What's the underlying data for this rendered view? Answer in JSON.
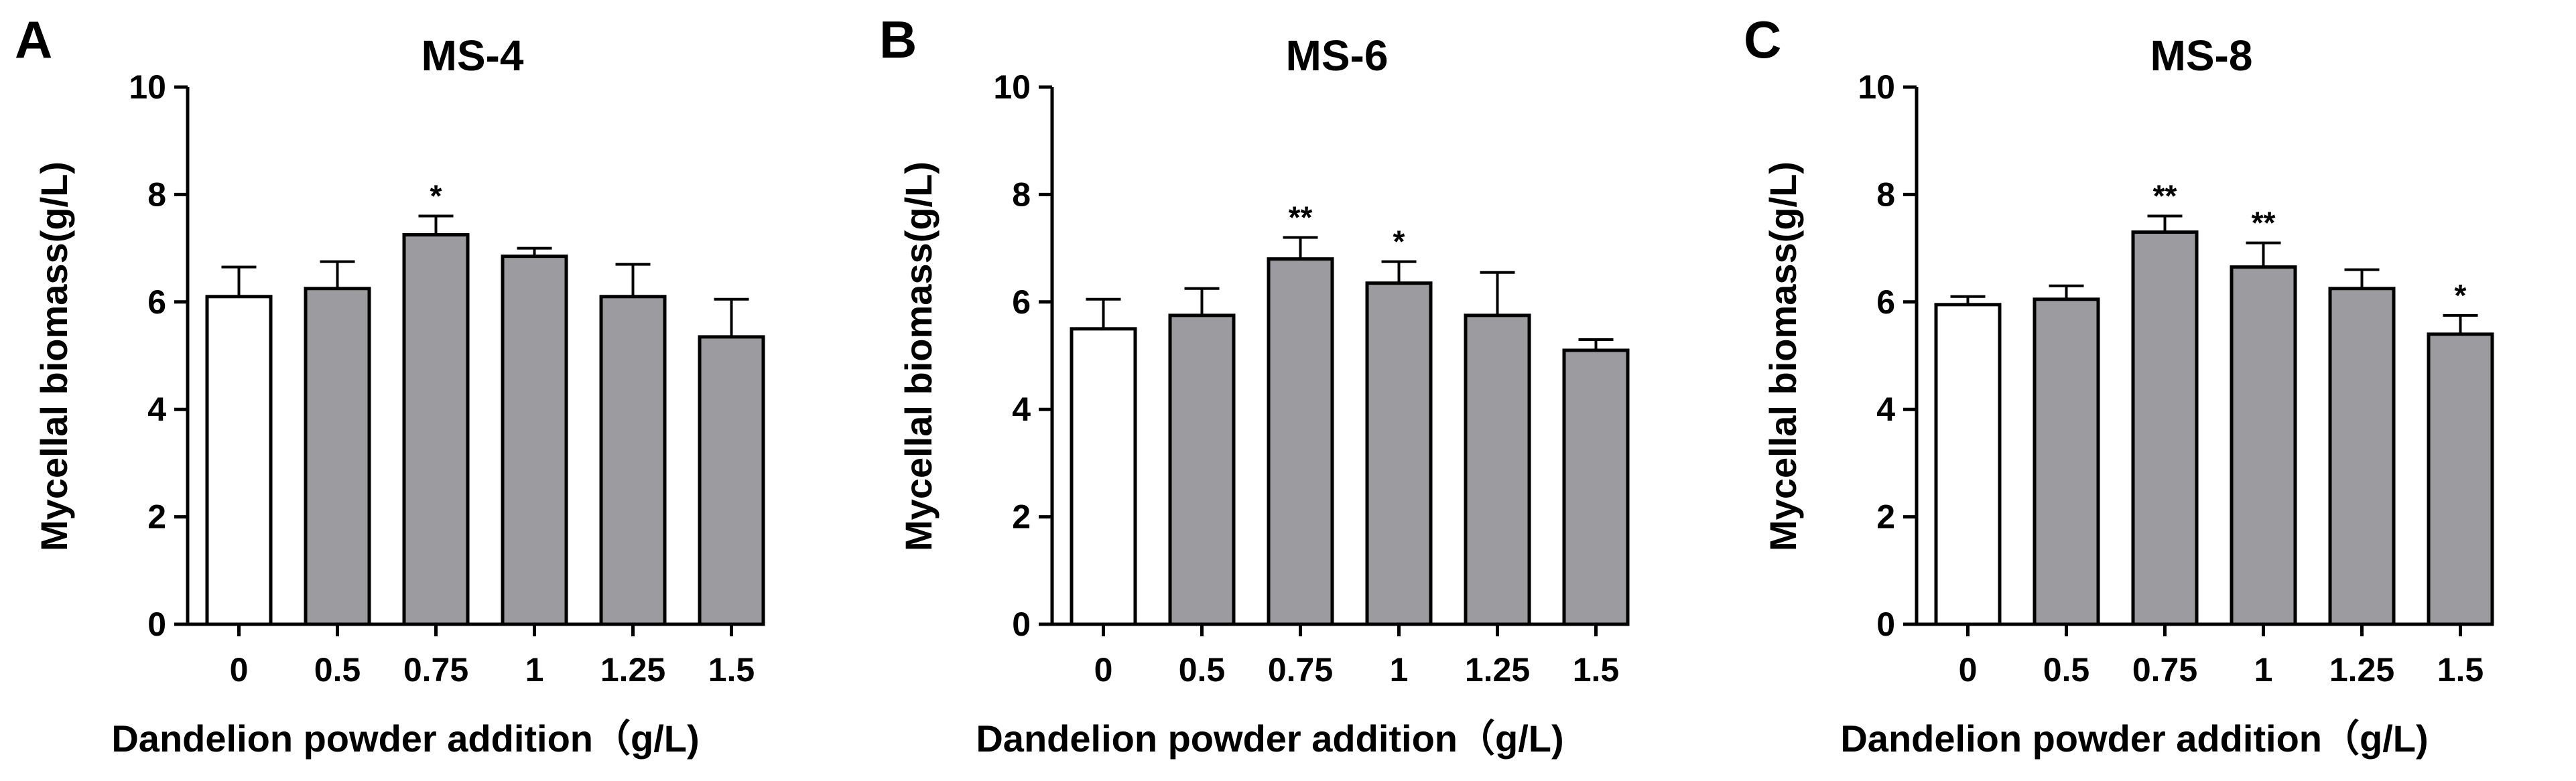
{
  "chart_data": [
    {
      "type": "bar",
      "panel_label": "A",
      "title": "MS-4",
      "xlabel": "Dandelion powder addition（g/L)",
      "ylabel": "Mycellal biomass(g/L)",
      "categories": [
        "0",
        "0.5",
        "0.75",
        "1",
        "1.25",
        "1.5"
      ],
      "values": [
        6.1,
        6.25,
        7.25,
        6.85,
        6.1,
        5.35
      ],
      "errors": [
        0.55,
        0.5,
        0.35,
        0.15,
        0.6,
        0.7
      ],
      "significance": [
        "",
        "",
        "*",
        "",
        "",
        ""
      ],
      "ylim": [
        0,
        10
      ],
      "yticks": [
        "0",
        "2",
        "4",
        "6",
        "8",
        "10"
      ],
      "colors": {
        "control": "#ffffff",
        "treatment": "#9c9ca0",
        "stroke": "#000000"
      }
    },
    {
      "type": "bar",
      "panel_label": "B",
      "title": "MS-6",
      "xlabel": "Dandelion powder addition（g/L)",
      "ylabel": "Mycellal biomass(g/L)",
      "categories": [
        "0",
        "0.5",
        "0.75",
        "1",
        "1.25",
        "1.5"
      ],
      "values": [
        5.5,
        5.75,
        6.8,
        6.35,
        5.75,
        5.1
      ],
      "errors": [
        0.55,
        0.5,
        0.4,
        0.4,
        0.8,
        0.2
      ],
      "significance": [
        "",
        "",
        "**",
        "*",
        "",
        ""
      ],
      "ylim": [
        0,
        10
      ],
      "yticks": [
        "0",
        "2",
        "4",
        "6",
        "8",
        "10"
      ],
      "colors": {
        "control": "#ffffff",
        "treatment": "#9c9ca0",
        "stroke": "#000000"
      }
    },
    {
      "type": "bar",
      "panel_label": "C",
      "title": "MS-8",
      "xlabel": "Dandelion powder addition（g/L)",
      "ylabel": "Mycellal biomass(g/L)",
      "categories": [
        "0",
        "0.5",
        "0.75",
        "1",
        "1.25",
        "1.5"
      ],
      "values": [
        5.95,
        6.05,
        7.3,
        6.65,
        6.25,
        5.4
      ],
      "errors": [
        0.15,
        0.25,
        0.3,
        0.45,
        0.35,
        0.35
      ],
      "significance": [
        "",
        "",
        "**",
        "**",
        "",
        "*"
      ],
      "ylim": [
        0,
        10
      ],
      "yticks": [
        "0",
        "2",
        "4",
        "6",
        "8",
        "10"
      ],
      "colors": {
        "control": "#ffffff",
        "treatment": "#9c9ca0",
        "stroke": "#000000"
      }
    }
  ]
}
